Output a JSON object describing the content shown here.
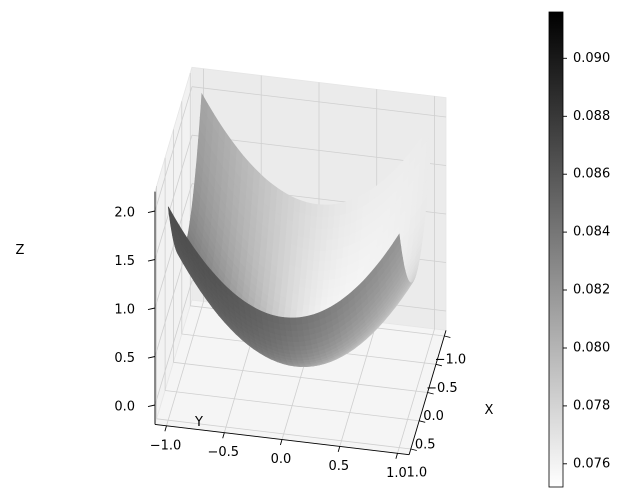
{
  "chart_data": {
    "type": "surface3d",
    "function": "z = x^2 + y^2",
    "x": [
      -1.0,
      -0.5,
      0.0,
      0.5,
      1.0
    ],
    "y": [
      -1.0,
      -0.5,
      0.0,
      0.5,
      1.0
    ],
    "z_grid": [
      [
        2.0,
        1.25,
        1.0,
        1.25,
        2.0
      ],
      [
        1.25,
        0.5,
        0.25,
        0.5,
        1.25
      ],
      [
        1.0,
        0.25,
        0.0,
        0.25,
        1.0
      ],
      [
        1.25,
        0.5,
        0.25,
        0.5,
        1.25
      ],
      [
        2.0,
        1.25,
        1.0,
        1.25,
        2.0
      ]
    ],
    "xlabel": "X",
    "ylabel": "Y",
    "zlabel": "Z",
    "xlim": [
      -1.1,
      1.1
    ],
    "ylim": [
      -1.1,
      1.1
    ],
    "zlim": [
      -0.2,
      2.2
    ],
    "x_ticks": [
      "−1.0",
      "−0.5",
      "0.0",
      "0.5",
      "1.0"
    ],
    "y_ticks": [
      "−1.0",
      "−0.5",
      "0.0",
      "0.5",
      "1.0"
    ],
    "z_ticks": [
      "0.0",
      "0.5",
      "1.0",
      "1.5",
      "2.0"
    ],
    "grid": true,
    "colormap": "gray_r",
    "colorbar": {
      "range": [
        0.0752,
        0.0916
      ],
      "ticks": [
        "0.076",
        "0.078",
        "0.080",
        "0.082",
        "0.084",
        "0.086",
        "0.088",
        "0.090"
      ]
    }
  }
}
